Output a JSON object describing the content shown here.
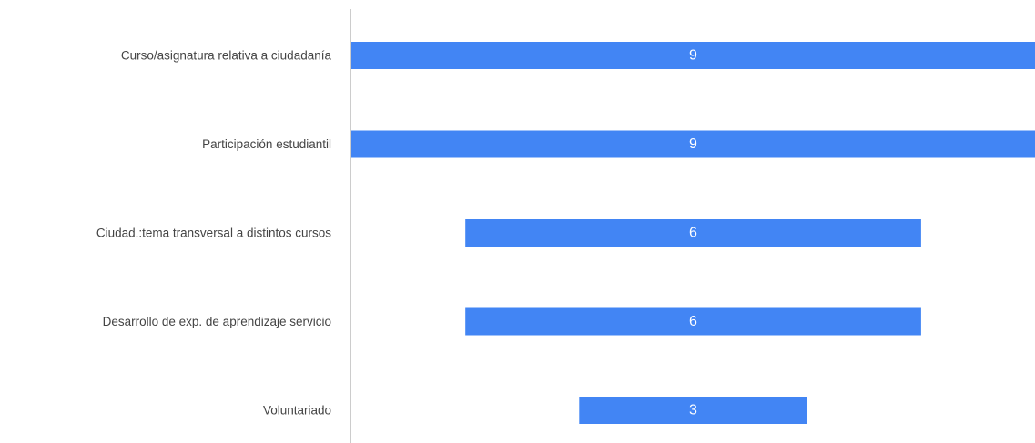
{
  "chart_data": {
    "type": "bar",
    "orientation": "horizontal",
    "layout": "centered-funnel",
    "categories": [
      "Curso/asignatura relativa a ciudadanía",
      "Participación estudiantil",
      "Ciudad.:tema transversal a distintos cursos",
      "Desarrollo de exp. de aprendizaje servicio",
      "Voluntariado"
    ],
    "values": [
      9,
      9,
      6,
      6,
      3
    ],
    "data_labels": [
      "9",
      "9",
      "6",
      "6",
      "3"
    ],
    "xlim": [
      0,
      9
    ],
    "grid": false,
    "legend": "none",
    "bar_color": "#4285f4",
    "axis_color": "#cccccc",
    "label_color": "#444444",
    "value_label_color": "#ffffff"
  }
}
